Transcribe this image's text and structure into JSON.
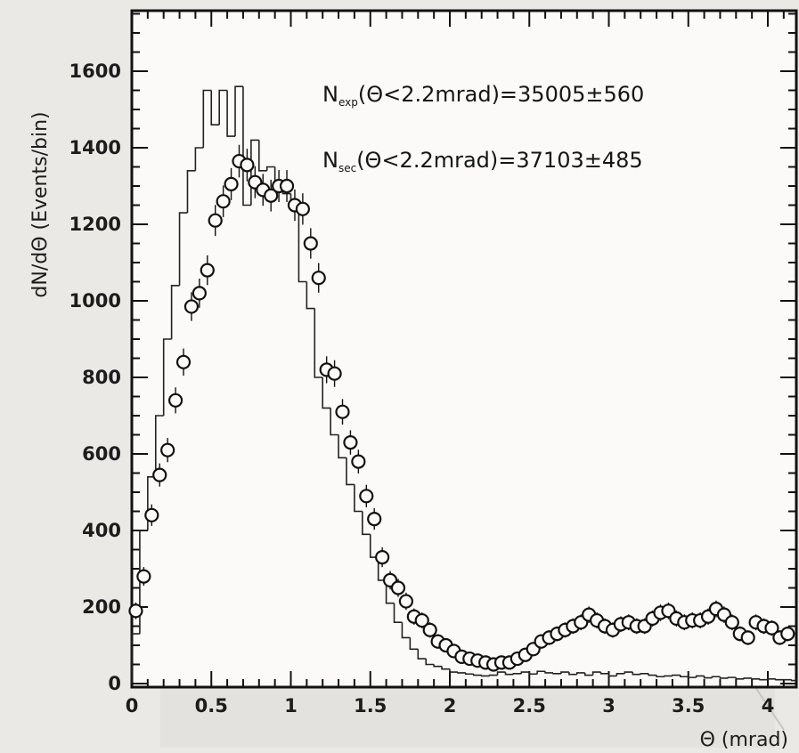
{
  "chart_data": {
    "type": "scatter",
    "title": "",
    "xlabel": "Θ (mrad)",
    "ylabel": "dN/dΘ (Events/bin)",
    "xlim": [
      0,
      4.2
    ],
    "ylim": [
      0,
      1750
    ],
    "x_ticks": [
      0,
      0.5,
      1,
      1.5,
      2,
      2.5,
      3,
      3.5,
      4
    ],
    "x_tick_labels": [
      "0",
      "0.5",
      "1",
      "1.5",
      "2",
      "2.5",
      "3",
      "3.5",
      "4"
    ],
    "y_ticks": [
      0,
      200,
      400,
      600,
      800,
      1000,
      1200,
      1400,
      1600
    ],
    "y_tick_labels": [
      "0",
      "200",
      "400",
      "600",
      "800",
      "1000",
      "1200",
      "1400",
      "1600"
    ],
    "grid": false,
    "annotations": [
      {
        "main": "N",
        "sub": "exp",
        "rest": "(Θ<2.2mrad)=35005±560"
      },
      {
        "main": "N",
        "sub": "sec",
        "rest": "(Θ<2.2mrad)=37103±485"
      }
    ],
    "histogram": {
      "bin_width": 0.05,
      "values": [
        130,
        400,
        540,
        700,
        900,
        1040,
        1230,
        1340,
        1400,
        1550,
        1460,
        1550,
        1430,
        1560,
        1250,
        1420,
        1340,
        1350,
        1310,
        1280,
        1250,
        1050,
        980,
        800,
        720,
        650,
        590,
        520,
        450,
        390,
        330,
        270,
        210,
        160,
        120,
        90,
        65,
        50,
        45,
        38,
        30,
        28,
        25,
        22,
        20,
        22,
        30,
        24,
        26,
        30,
        25,
        32,
        28,
        26,
        30,
        24,
        28,
        22,
        30,
        26,
        20,
        26,
        30,
        24,
        26,
        22,
        18,
        20,
        22,
        18,
        16,
        20,
        15,
        18,
        14,
        16,
        12,
        14,
        12,
        10,
        12,
        10,
        10,
        8
      ]
    },
    "points": {
      "x": [
        0.025,
        0.075,
        0.125,
        0.175,
        0.225,
        0.275,
        0.325,
        0.375,
        0.425,
        0.475,
        0.525,
        0.575,
        0.625,
        0.675,
        0.725,
        0.775,
        0.825,
        0.875,
        0.925,
        0.975,
        1.025,
        1.075,
        1.125,
        1.175,
        1.225,
        1.275,
        1.325,
        1.375,
        1.425,
        1.475,
        1.525,
        1.575,
        1.625,
        1.675,
        1.725,
        1.775,
        1.825,
        1.875,
        1.925,
        1.975,
        2.025,
        2.075,
        2.125,
        2.175,
        2.225,
        2.275,
        2.325,
        2.375,
        2.425,
        2.475,
        2.525,
        2.575,
        2.625,
        2.675,
        2.725,
        2.775,
        2.825,
        2.875,
        2.925,
        2.975,
        3.025,
        3.075,
        3.125,
        3.175,
        3.225,
        3.275,
        3.325,
        3.375,
        3.425,
        3.475,
        3.525,
        3.575,
        3.625,
        3.675,
        3.725,
        3.775,
        3.825,
        3.875,
        3.925,
        3.975,
        4.025,
        4.075,
        4.125,
        4.175
      ],
      "y": [
        190,
        280,
        440,
        545,
        610,
        740,
        840,
        985,
        1020,
        1080,
        1210,
        1260,
        1305,
        1365,
        1355,
        1310,
        1290,
        1275,
        1300,
        1300,
        1250,
        1240,
        1150,
        1060,
        820,
        810,
        710,
        630,
        580,
        490,
        430,
        330,
        270,
        250,
        215,
        175,
        165,
        140,
        110,
        100,
        85,
        70,
        65,
        60,
        55,
        50,
        55,
        55,
        65,
        75,
        90,
        110,
        120,
        130,
        140,
        150,
        160,
        180,
        165,
        150,
        140,
        155,
        160,
        150,
        150,
        170,
        185,
        190,
        170,
        160,
        165,
        165,
        175,
        195,
        180,
        160,
        130,
        120,
        160,
        150,
        145,
        120,
        130,
        125
      ]
    }
  }
}
